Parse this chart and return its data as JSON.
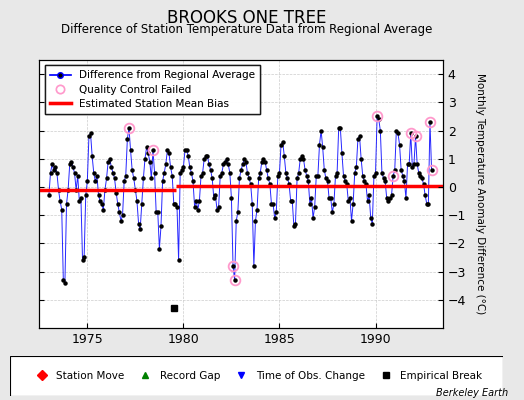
{
  "title": "BROOKS ONE TREE",
  "subtitle": "Difference of Station Temperature Data from Regional Average",
  "ylabel": "Monthly Temperature Anomaly Difference (°C)",
  "xlim": [
    1972.5,
    1993.5
  ],
  "ylim": [
    -5,
    4.5
  ],
  "yticks": [
    -4,
    -3,
    -2,
    -1,
    0,
    1,
    2,
    3,
    4
  ],
  "xticks": [
    1975,
    1980,
    1985,
    1990
  ],
  "bias_level": -0.1,
  "bias_x_start": 1972.5,
  "bias_x_end": 1979.6,
  "bias2_level": 0.05,
  "bias2_x_start": 1979.6,
  "bias2_x_end": 1993.5,
  "empirical_break_x": 1979.5,
  "empirical_break_y": -4.3,
  "background_color": "#e8e8e8",
  "plot_bg_color": "#ffffff",
  "line_color": "#0000ff",
  "dot_color": "#000000",
  "bias_color": "#ff0000",
  "qc_color": "#ff99cc",
  "title_fontsize": 12,
  "subtitle_fontsize": 8.5,
  "data": [
    [
      1973.0,
      -0.3
    ],
    [
      1973.083,
      0.5
    ],
    [
      1973.167,
      0.8
    ],
    [
      1973.25,
      0.6
    ],
    [
      1973.333,
      0.7
    ],
    [
      1973.417,
      0.5
    ],
    [
      1973.5,
      -0.1
    ],
    [
      1973.583,
      -0.5
    ],
    [
      1973.667,
      -0.8
    ],
    [
      1973.75,
      -3.3
    ],
    [
      1973.833,
      -3.4
    ],
    [
      1973.917,
      -0.6
    ],
    [
      1974.0,
      -0.1
    ],
    [
      1974.083,
      0.8
    ],
    [
      1974.167,
      0.9
    ],
    [
      1974.25,
      0.7
    ],
    [
      1974.333,
      0.5
    ],
    [
      1974.417,
      -0.1
    ],
    [
      1974.5,
      0.4
    ],
    [
      1974.583,
      -0.5
    ],
    [
      1974.667,
      -0.4
    ],
    [
      1974.75,
      -2.6
    ],
    [
      1974.833,
      -2.5
    ],
    [
      1974.917,
      -0.3
    ],
    [
      1975.0,
      0.2
    ],
    [
      1975.083,
      1.8
    ],
    [
      1975.167,
      1.9
    ],
    [
      1975.25,
      1.1
    ],
    [
      1975.333,
      0.5
    ],
    [
      1975.417,
      0.2
    ],
    [
      1975.5,
      0.4
    ],
    [
      1975.583,
      -0.3
    ],
    [
      1975.667,
      -0.5
    ],
    [
      1975.75,
      -0.6
    ],
    [
      1975.833,
      -0.8
    ],
    [
      1975.917,
      -0.1
    ],
    [
      1976.0,
      0.3
    ],
    [
      1976.083,
      0.9
    ],
    [
      1976.167,
      1.0
    ],
    [
      1976.25,
      0.7
    ],
    [
      1976.333,
      0.5
    ],
    [
      1976.417,
      0.3
    ],
    [
      1976.5,
      -0.2
    ],
    [
      1976.583,
      -0.6
    ],
    [
      1976.667,
      -0.9
    ],
    [
      1976.75,
      -1.2
    ],
    [
      1976.833,
      -1.0
    ],
    [
      1976.917,
      0.2
    ],
    [
      1977.0,
      0.4
    ],
    [
      1977.083,
      1.7
    ],
    [
      1977.167,
      2.1
    ],
    [
      1977.25,
      1.3
    ],
    [
      1977.333,
      0.6
    ],
    [
      1977.417,
      0.3
    ],
    [
      1977.5,
      -0.1
    ],
    [
      1977.583,
      -0.5
    ],
    [
      1977.667,
      -1.3
    ],
    [
      1977.75,
      -1.5
    ],
    [
      1977.833,
      -0.6
    ],
    [
      1977.917,
      0.3
    ],
    [
      1978.0,
      1.0
    ],
    [
      1978.083,
      1.4
    ],
    [
      1978.167,
      1.2
    ],
    [
      1978.25,
      0.9
    ],
    [
      1978.333,
      0.3
    ],
    [
      1978.417,
      1.3
    ],
    [
      1978.5,
      0.5
    ],
    [
      1978.583,
      -0.9
    ],
    [
      1978.667,
      -0.9
    ],
    [
      1978.75,
      -2.2
    ],
    [
      1978.833,
      -1.4
    ],
    [
      1978.917,
      0.2
    ],
    [
      1979.0,
      0.5
    ],
    [
      1979.083,
      0.8
    ],
    [
      1979.167,
      1.3
    ],
    [
      1979.25,
      1.2
    ],
    [
      1979.333,
      0.7
    ],
    [
      1979.417,
      0.4
    ],
    [
      1979.5,
      -0.6
    ],
    [
      1979.583,
      -0.6
    ],
    [
      1979.667,
      -0.7
    ],
    [
      1979.75,
      -2.6
    ],
    [
      1979.833,
      0.5
    ],
    [
      1979.917,
      0.6
    ],
    [
      1980.0,
      0.7
    ],
    [
      1980.083,
      1.3
    ],
    [
      1980.167,
      1.3
    ],
    [
      1980.25,
      1.1
    ],
    [
      1980.333,
      0.7
    ],
    [
      1980.417,
      0.5
    ],
    [
      1980.5,
      0.2
    ],
    [
      1980.583,
      -0.7
    ],
    [
      1980.667,
      -0.5
    ],
    [
      1980.75,
      -0.8
    ],
    [
      1980.833,
      -0.5
    ],
    [
      1980.917,
      0.4
    ],
    [
      1981.0,
      0.5
    ],
    [
      1981.083,
      1.0
    ],
    [
      1981.167,
      1.1
    ],
    [
      1981.25,
      1.1
    ],
    [
      1981.333,
      0.8
    ],
    [
      1981.417,
      0.6
    ],
    [
      1981.5,
      0.3
    ],
    [
      1981.583,
      -0.4
    ],
    [
      1981.667,
      -0.3
    ],
    [
      1981.75,
      -0.8
    ],
    [
      1981.833,
      -0.7
    ],
    [
      1981.917,
      0.4
    ],
    [
      1982.0,
      0.5
    ],
    [
      1982.083,
      0.8
    ],
    [
      1982.167,
      0.9
    ],
    [
      1982.25,
      1.0
    ],
    [
      1982.333,
      0.8
    ],
    [
      1982.417,
      0.5
    ],
    [
      1982.5,
      -0.4
    ],
    [
      1982.583,
      -2.8
    ],
    [
      1982.667,
      -3.3
    ],
    [
      1982.75,
      -1.2
    ],
    [
      1982.833,
      -0.9
    ],
    [
      1982.917,
      0.3
    ],
    [
      1983.0,
      0.6
    ],
    [
      1983.083,
      0.8
    ],
    [
      1983.167,
      1.0
    ],
    [
      1983.25,
      0.9
    ],
    [
      1983.333,
      0.5
    ],
    [
      1983.417,
      0.3
    ],
    [
      1983.5,
      0.1
    ],
    [
      1983.583,
      -0.6
    ],
    [
      1983.667,
      -2.8
    ],
    [
      1983.75,
      -1.2
    ],
    [
      1983.833,
      -0.8
    ],
    [
      1983.917,
      0.3
    ],
    [
      1984.0,
      0.5
    ],
    [
      1984.083,
      0.9
    ],
    [
      1984.167,
      1.0
    ],
    [
      1984.25,
      0.9
    ],
    [
      1984.333,
      0.6
    ],
    [
      1984.417,
      0.3
    ],
    [
      1984.5,
      0.1
    ],
    [
      1984.583,
      -0.6
    ],
    [
      1984.667,
      -0.6
    ],
    [
      1984.75,
      -1.1
    ],
    [
      1984.833,
      -0.9
    ],
    [
      1984.917,
      0.4
    ],
    [
      1985.0,
      0.5
    ],
    [
      1985.083,
      1.5
    ],
    [
      1985.167,
      1.6
    ],
    [
      1985.25,
      1.1
    ],
    [
      1985.333,
      0.5
    ],
    [
      1985.417,
      0.3
    ],
    [
      1985.5,
      0.1
    ],
    [
      1985.583,
      -0.5
    ],
    [
      1985.667,
      -0.5
    ],
    [
      1985.75,
      -1.4
    ],
    [
      1985.833,
      -1.3
    ],
    [
      1985.917,
      0.3
    ],
    [
      1986.0,
      0.5
    ],
    [
      1986.083,
      1.0
    ],
    [
      1986.167,
      1.1
    ],
    [
      1986.25,
      1.0
    ],
    [
      1986.333,
      0.6
    ],
    [
      1986.417,
      0.4
    ],
    [
      1986.5,
      0.2
    ],
    [
      1986.583,
      -0.6
    ],
    [
      1986.667,
      -0.4
    ],
    [
      1986.75,
      -1.1
    ],
    [
      1986.833,
      -0.7
    ],
    [
      1986.917,
      0.4
    ],
    [
      1987.0,
      0.4
    ],
    [
      1987.083,
      1.5
    ],
    [
      1987.167,
      2.0
    ],
    [
      1987.25,
      1.4
    ],
    [
      1987.333,
      0.6
    ],
    [
      1987.417,
      0.3
    ],
    [
      1987.5,
      0.2
    ],
    [
      1987.583,
      -0.4
    ],
    [
      1987.667,
      -0.4
    ],
    [
      1987.75,
      -0.9
    ],
    [
      1987.833,
      -0.6
    ],
    [
      1987.917,
      0.4
    ],
    [
      1988.0,
      0.5
    ],
    [
      1988.083,
      2.1
    ],
    [
      1988.167,
      2.1
    ],
    [
      1988.25,
      1.2
    ],
    [
      1988.333,
      0.4
    ],
    [
      1988.417,
      0.2
    ],
    [
      1988.5,
      0.1
    ],
    [
      1988.583,
      -0.5
    ],
    [
      1988.667,
      -0.4
    ],
    [
      1988.75,
      -1.2
    ],
    [
      1988.833,
      -0.6
    ],
    [
      1988.917,
      0.5
    ],
    [
      1989.0,
      0.7
    ],
    [
      1989.083,
      1.7
    ],
    [
      1989.167,
      1.8
    ],
    [
      1989.25,
      1.0
    ],
    [
      1989.333,
      0.4
    ],
    [
      1989.417,
      0.2
    ],
    [
      1989.5,
      0.1
    ],
    [
      1989.583,
      -0.5
    ],
    [
      1989.667,
      -0.3
    ],
    [
      1989.75,
      -1.1
    ],
    [
      1989.833,
      -1.3
    ],
    [
      1989.917,
      0.4
    ],
    [
      1990.0,
      0.5
    ],
    [
      1990.083,
      2.5
    ],
    [
      1990.167,
      2.4
    ],
    [
      1990.25,
      2.0
    ],
    [
      1990.333,
      0.5
    ],
    [
      1990.417,
      0.3
    ],
    [
      1990.5,
      0.2
    ],
    [
      1990.583,
      -0.4
    ],
    [
      1990.667,
      -0.5
    ],
    [
      1990.75,
      -0.4
    ],
    [
      1990.833,
      -0.3
    ],
    [
      1990.917,
      0.4
    ],
    [
      1991.0,
      0.6
    ],
    [
      1991.083,
      2.0
    ],
    [
      1991.167,
      1.9
    ],
    [
      1991.25,
      1.5
    ],
    [
      1991.333,
      0.6
    ],
    [
      1991.417,
      0.4
    ],
    [
      1991.5,
      0.2
    ],
    [
      1991.583,
      -0.4
    ],
    [
      1991.667,
      0.8
    ],
    [
      1991.75,
      0.8
    ],
    [
      1991.833,
      1.9
    ],
    [
      1991.917,
      0.7
    ],
    [
      1992.0,
      0.8
    ],
    [
      1992.083,
      1.8
    ],
    [
      1992.167,
      0.8
    ],
    [
      1992.25,
      0.5
    ],
    [
      1992.333,
      0.4
    ],
    [
      1992.417,
      0.3
    ],
    [
      1992.5,
      0.1
    ],
    [
      1992.583,
      -0.3
    ],
    [
      1992.667,
      -0.6
    ],
    [
      1992.75,
      -0.6
    ],
    [
      1992.833,
      2.3
    ],
    [
      1992.917,
      0.6
    ]
  ],
  "qc_points": [
    [
      1977.167,
      2.1
    ],
    [
      1978.417,
      1.3
    ],
    [
      1982.583,
      -2.8
    ],
    [
      1982.667,
      -3.3
    ],
    [
      1990.083,
      2.5
    ],
    [
      1990.917,
      0.4
    ],
    [
      1991.833,
      1.9
    ],
    [
      1992.083,
      1.8
    ],
    [
      1992.833,
      2.3
    ],
    [
      1992.917,
      0.6
    ]
  ]
}
